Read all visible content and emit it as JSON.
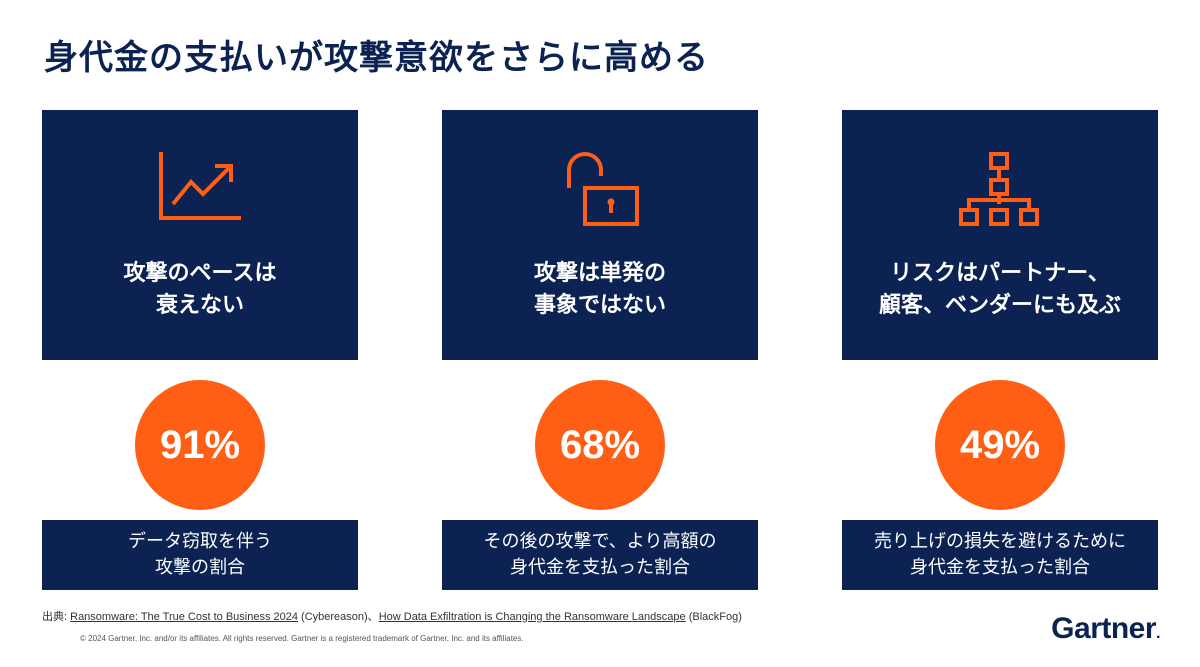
{
  "title": "身代金の支払いが攻撃意欲をさらに高める",
  "colors": {
    "navy": "#0b2253",
    "orange": "#ff5e14",
    "icon_orange": "#ff5e14"
  },
  "cards": [
    {
      "icon": "trend-up-icon",
      "line1": "攻撃のペースは",
      "line2": "衰えない",
      "stat": "91%",
      "desc1": "データ窃取を伴う",
      "desc2": "攻撃の割合"
    },
    {
      "icon": "unlocked-padlock-icon",
      "line1": "攻撃は単発の",
      "line2": "事象ではない",
      "stat": "68%",
      "desc1": "その後の攻撃で、より高額の",
      "desc2": "身代金を支払った割合"
    },
    {
      "icon": "hierarchy-icon",
      "line1": "リスクはパートナー、",
      "line2": "顧客、ベンダーにも及ぶ",
      "stat": "49%",
      "desc1": "売り上げの損失を避けるために",
      "desc2": "身代金を支払った割合"
    }
  ],
  "source": {
    "label": "出典:",
    "link1": "Ransomware: The True Cost to Business 2024",
    "pub1": " (Cybereason)、",
    "link2": "How Data Exfiltration is Changing the Ransomware Landscape",
    "pub2": " (BlackFog)"
  },
  "copyright": "© 2024 Gartner, Inc. and/or its affiliates. All rights reserved. Gartner is a registered trademark of Gartner, Inc. and its affiliates.",
  "logo": {
    "text": "Gartner",
    "dot": "."
  }
}
